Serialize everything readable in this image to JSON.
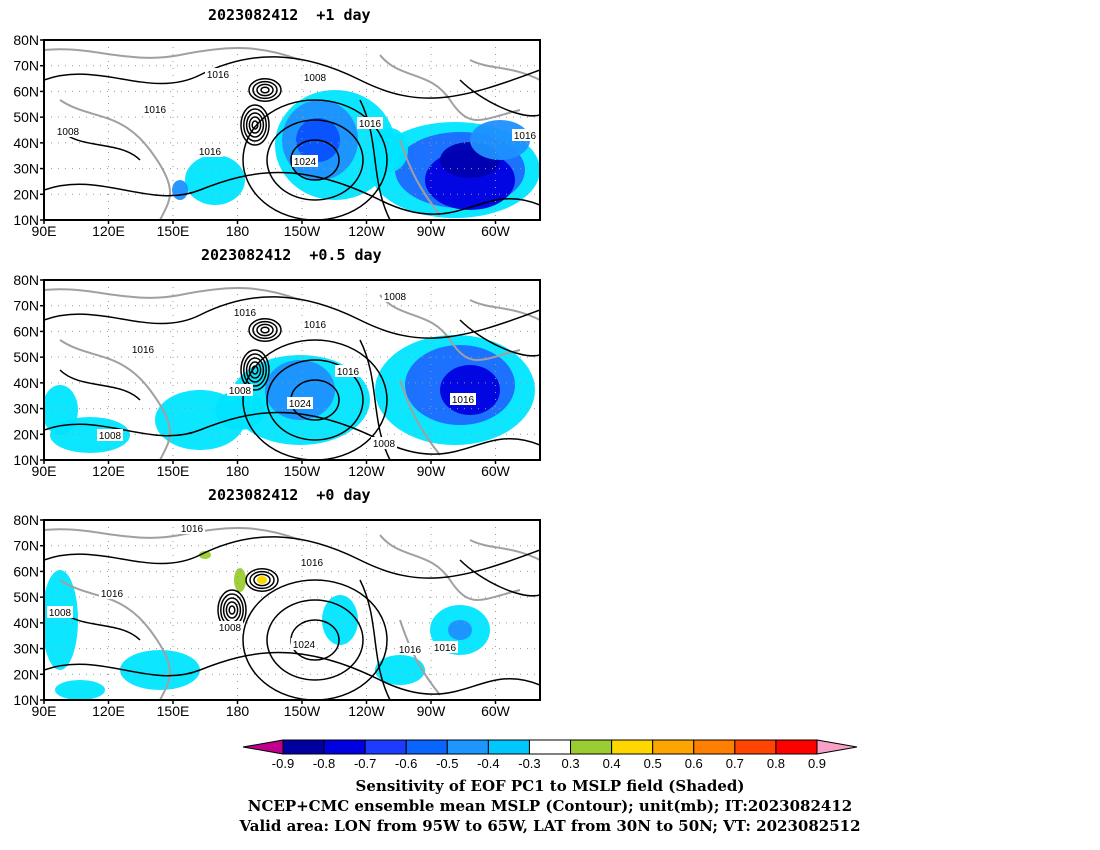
{
  "panels": [
    {
      "title": "2023082412  +1 day"
    },
    {
      "title": "2023082412  +0.5 day"
    },
    {
      "title": "2023082412  +0 day"
    }
  ],
  "lat_labels": [
    "80N",
    "70N",
    "60N",
    "50N",
    "40N",
    "30N",
    "20N",
    "10N"
  ],
  "lon_labels": [
    "90E",
    "120E",
    "150E",
    "180",
    "150W",
    "120W",
    "90W",
    "60W"
  ],
  "colorbar": {
    "labels": [
      "-0.9",
      "-0.8",
      "-0.7",
      "-0.6",
      "-0.5",
      "-0.4",
      "-0.3",
      "0.3",
      "0.4",
      "0.5",
      "0.6",
      "0.7",
      "0.8",
      "0.9"
    ],
    "colors": [
      "#0000a0",
      "#0000e0",
      "#1e3cff",
      "#0a64ff",
      "#1e96ff",
      "#00c8ff",
      "#ffffff",
      "#9acd32",
      "#ffd700",
      "#ffa500",
      "#ff7f00",
      "#ff4500",
      "#ff0000"
    ],
    "low_color": "#c0008c",
    "high_color": "#f7a1c9"
  },
  "contour_labels": [
    "1016",
    "1008",
    "1024"
  ],
  "captions": [
    "Sensitivity of EOF PC1 to MSLP field (Shaded)",
    "NCEP+CMC ensemble mean MSLP (Contour); unit(mb); IT:2023082412",
    "Valid area: LON from 95W to 65W, LAT from 30N to 50N; VT: 2023082512"
  ]
}
